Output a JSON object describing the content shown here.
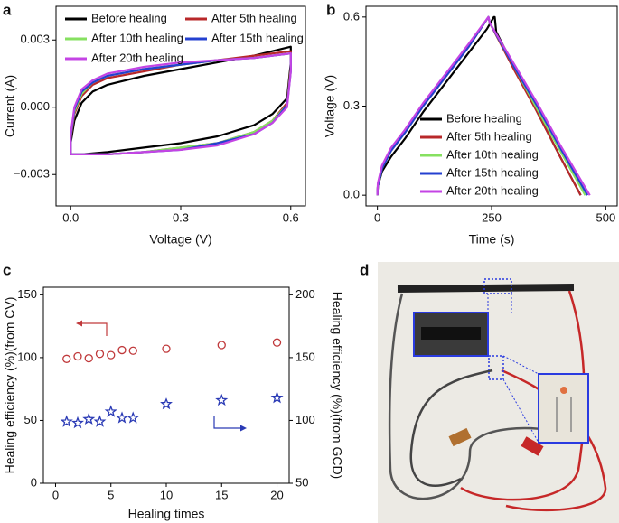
{
  "panel_labels": [
    "a",
    "b",
    "c",
    "d"
  ],
  "chart_data": [
    {
      "type": "line",
      "xlabel": "Voltage (V)",
      "ylabel": "Current (A)",
      "xlim": [
        -0.04,
        0.64
      ],
      "ylim": [
        -0.0044,
        0.0045
      ],
      "xticks": [
        {
          "value": 0,
          "label": "0.0"
        },
        0.3,
        0.6
      ],
      "yticks": [
        {
          "value": -0.003,
          "label": "−0.003"
        },
        {
          "value": 0,
          "label": "0.000"
        },
        0.003
      ],
      "legend": "upper left",
      "series": [
        {
          "name": "Before healing",
          "color": "#000000",
          "x": [
            0,
            0,
            0.01,
            0.03,
            0.06,
            0.1,
            0.2,
            0.3,
            0.4,
            0.5,
            0.6,
            0.6,
            0.59,
            0.55,
            0.5,
            0.4,
            0.3,
            0.2,
            0.1,
            0.03,
            0
          ],
          "values": [
            -0.0021,
            -0.0016,
            -0.0006,
            0.0002,
            0.0007,
            0.001,
            0.0014,
            0.0017,
            0.002,
            0.0023,
            0.0027,
            0.002,
            0.0004,
            -0.0003,
            -0.0008,
            -0.0013,
            -0.0016,
            -0.0018,
            -0.002,
            -0.0021,
            -0.0021
          ]
        },
        {
          "name": "After 5th healing",
          "color": "#b8282a",
          "x": [
            0,
            0,
            0.01,
            0.03,
            0.06,
            0.1,
            0.2,
            0.3,
            0.4,
            0.5,
            0.6,
            0.6,
            0.59,
            0.55,
            0.5,
            0.4,
            0.3,
            0.2,
            0.1,
            0.03,
            0
          ],
          "values": [
            -0.0021,
            -0.0014,
            -0.0003,
            0.0005,
            0.001,
            0.0013,
            0.0016,
            0.0019,
            0.0021,
            0.0023,
            0.0025,
            0.0018,
            0.0002,
            -0.0006,
            -0.0011,
            -0.0016,
            -0.0018,
            -0.002,
            -0.0021,
            -0.0021,
            -0.0021
          ]
        },
        {
          "name": "After 10th healing",
          "color": "#86e060",
          "x": [
            0,
            0,
            0.01,
            0.03,
            0.06,
            0.1,
            0.2,
            0.3,
            0.4,
            0.5,
            0.6,
            0.6,
            0.59,
            0.55,
            0.5,
            0.4,
            0.3,
            0.2,
            0.1,
            0.03,
            0
          ],
          "values": [
            -0.0021,
            -0.0013,
            -0.0002,
            0.0006,
            0.0011,
            0.0014,
            0.0017,
            0.0019,
            0.0021,
            0.0022,
            0.0024,
            0.0017,
            0.0001,
            -0.0006,
            -0.0011,
            -0.0016,
            -0.0018,
            -0.002,
            -0.0021,
            -0.0021,
            -0.0021
          ]
        },
        {
          "name": "After 15th healing",
          "color": "#2440d0",
          "x": [
            0,
            0,
            0.01,
            0.03,
            0.06,
            0.1,
            0.2,
            0.3,
            0.4,
            0.5,
            0.6,
            0.6,
            0.59,
            0.55,
            0.5,
            0.4,
            0.3,
            0.2,
            0.1,
            0.03,
            0
          ],
          "values": [
            -0.0021,
            -0.0013,
            -0.0001,
            0.0007,
            0.0011,
            0.0014,
            0.0017,
            0.0019,
            0.0021,
            0.0022,
            0.0024,
            0.0016,
            0.0001,
            -0.0007,
            -0.0012,
            -0.0016,
            -0.0019,
            -0.002,
            -0.0021,
            -0.0021,
            -0.0021
          ]
        },
        {
          "name": "After 20th healing",
          "color": "#c444e4",
          "x": [
            0,
            0,
            0.01,
            0.03,
            0.06,
            0.1,
            0.2,
            0.3,
            0.4,
            0.5,
            0.6,
            0.6,
            0.59,
            0.55,
            0.5,
            0.4,
            0.3,
            0.2,
            0.1,
            0.03,
            0
          ],
          "values": [
            -0.0021,
            -0.0012,
            0,
            0.0008,
            0.0012,
            0.0015,
            0.0018,
            0.002,
            0.0021,
            0.0022,
            0.0024,
            0.0016,
            0,
            -0.0007,
            -0.0012,
            -0.0017,
            -0.0019,
            -0.002,
            -0.0021,
            -0.0021,
            -0.0021
          ]
        }
      ]
    },
    {
      "type": "line",
      "xlabel": "Time (s)",
      "ylabel": "Voltage (V)",
      "xlim": [
        -25,
        525
      ],
      "ylim": [
        -0.036,
        0.636
      ],
      "xticks": [
        0,
        250,
        500
      ],
      "yticks": [
        {
          "value": 0,
          "label": "0.0"
        },
        0.3,
        0.6
      ],
      "legend": "lower right",
      "series": [
        {
          "name": "Before healing",
          "color": "#000000",
          "x": [
            0,
            1,
            10,
            30,
            60,
            100,
            150,
            200,
            240,
            255,
            257,
            260,
            300,
            350,
            400,
            445
          ],
          "values": [
            0,
            0.03,
            0.08,
            0.13,
            0.19,
            0.28,
            0.38,
            0.48,
            0.56,
            0.6,
            0.6,
            0.55,
            0.43,
            0.28,
            0.13,
            0
          ]
        },
        {
          "name": "After 5th healing",
          "color": "#b8282a",
          "x": [
            0,
            1,
            10,
            30,
            60,
            100,
            150,
            200,
            243,
            246,
            300,
            350,
            400,
            445
          ],
          "values": [
            0,
            0.03,
            0.09,
            0.15,
            0.21,
            0.3,
            0.4,
            0.5,
            0.6,
            0.58,
            0.42,
            0.28,
            0.13,
            0
          ]
        },
        {
          "name": "After 10th healing",
          "color": "#86e060",
          "x": [
            0,
            1,
            10,
            30,
            60,
            100,
            150,
            200,
            243,
            246,
            300,
            350,
            400,
            455
          ],
          "values": [
            0,
            0.03,
            0.09,
            0.15,
            0.21,
            0.3,
            0.4,
            0.5,
            0.6,
            0.58,
            0.43,
            0.29,
            0.15,
            0
          ]
        },
        {
          "name": "After 15th healing",
          "color": "#2440d0",
          "x": [
            0,
            1,
            10,
            30,
            60,
            100,
            150,
            200,
            243,
            246,
            300,
            350,
            400,
            460
          ],
          "values": [
            0,
            0.03,
            0.09,
            0.15,
            0.21,
            0.3,
            0.4,
            0.5,
            0.6,
            0.58,
            0.43,
            0.3,
            0.16,
            0
          ]
        },
        {
          "name": "After 20th healing",
          "color": "#c444e4",
          "x": [
            0,
            1,
            10,
            30,
            60,
            100,
            150,
            200,
            243,
            246,
            300,
            350,
            400,
            465
          ],
          "values": [
            0,
            0.04,
            0.1,
            0.16,
            0.22,
            0.31,
            0.41,
            0.51,
            0.6,
            0.58,
            0.44,
            0.31,
            0.17,
            0
          ]
        }
      ]
    },
    {
      "type": "scatter",
      "xlabel": "Healing times",
      "ylabel": "Healing efficiency (%)(from CV)",
      "y2label": "Healing efficiency (%)(from GCD)",
      "xlim": [
        -1.1,
        21.1
      ],
      "ylim": [
        0,
        156
      ],
      "y2lim": [
        50,
        206
      ],
      "xticks": [
        0,
        5,
        10,
        15,
        20
      ],
      "yticks": [
        0,
        50,
        100,
        150
      ],
      "y2ticks": [
        50,
        100,
        150,
        200
      ],
      "series": [
        {
          "name": "from CV",
          "color": "#c0393b",
          "marker": "circle",
          "x": [
            1,
            2,
            3,
            4,
            5,
            6,
            7,
            10,
            15,
            20
          ],
          "values": [
            99,
            101,
            99.5,
            103,
            102,
            106,
            105.5,
            107,
            110,
            112
          ]
        },
        {
          "name": "from GCD",
          "color": "#2a3ab5",
          "marker": "star",
          "axis": "y2",
          "x": [
            1,
            2,
            3,
            4,
            5,
            6,
            7,
            10,
            15,
            20
          ],
          "values": [
            99,
            98,
            101,
            99,
            107,
            102,
            102,
            113,
            116,
            118
          ]
        }
      ]
    }
  ]
}
